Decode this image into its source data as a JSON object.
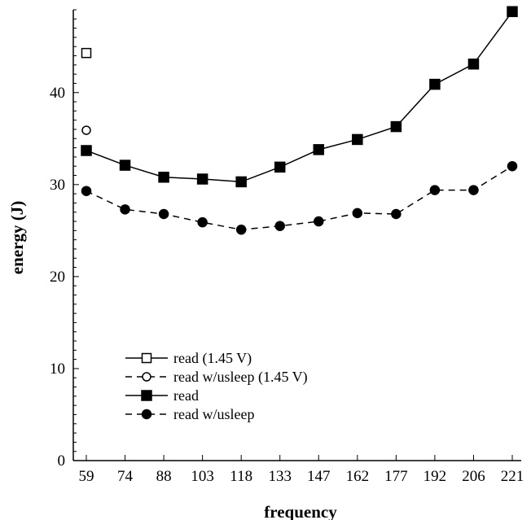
{
  "chart_data": {
    "type": "line",
    "xlabel": "frequency",
    "ylabel": "energy (J)",
    "categories": [
      "59",
      "74",
      "88",
      "103",
      "118",
      "133",
      "147",
      "162",
      "177",
      "192",
      "206",
      "221"
    ],
    "ylim": [
      0,
      49
    ],
    "yticks": [
      0,
      10,
      20,
      30,
      40
    ],
    "series": [
      {
        "name": "read (1.45 V)",
        "marker": "open-square",
        "line": "solid",
        "values": [
          44.3,
          null,
          null,
          null,
          null,
          null,
          null,
          null,
          null,
          null,
          null,
          null
        ]
      },
      {
        "name": "read w/usleep (1.45 V)",
        "marker": "open-circle",
        "line": "dashed",
        "values": [
          35.9,
          null,
          null,
          null,
          null,
          null,
          null,
          null,
          null,
          null,
          null,
          null
        ]
      },
      {
        "name": "read",
        "marker": "filled-square",
        "line": "solid",
        "values": [
          33.7,
          32.1,
          30.8,
          30.6,
          30.3,
          31.9,
          33.8,
          34.9,
          36.3,
          40.9,
          43.1,
          48.8
        ]
      },
      {
        "name": "read w/usleep",
        "marker": "filled-circle",
        "line": "dashed",
        "values": [
          29.3,
          27.3,
          26.8,
          25.9,
          25.1,
          25.5,
          26.0,
          26.9,
          26.8,
          29.4,
          29.4,
          32.0
        ]
      }
    ],
    "legend_position": "bottom-left",
    "grid": false,
    "colors": {
      "line": "#000000",
      "background": "#ffffff"
    }
  }
}
